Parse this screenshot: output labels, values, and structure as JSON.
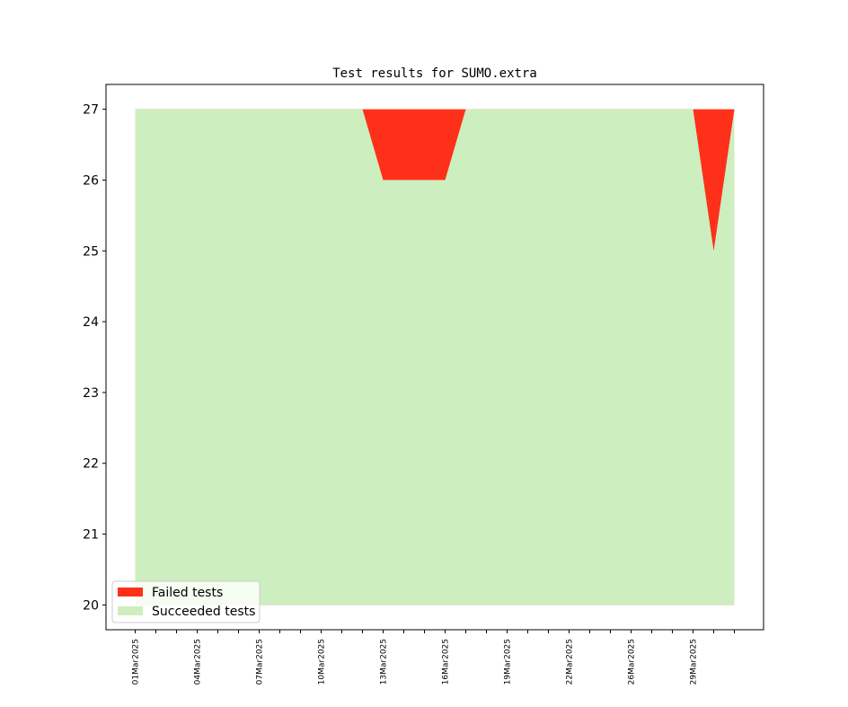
{
  "chart_data": {
    "type": "area",
    "title": "Test results for SUMO.extra",
    "xlabel": "",
    "ylabel": "",
    "ylim": [
      19.65,
      27.35
    ],
    "yticks": [
      20,
      21,
      22,
      23,
      24,
      25,
      26,
      27
    ],
    "x": [
      "01Mar2025",
      "02Mar2025",
      "03Mar2025",
      "04Mar2025",
      "05Mar2025",
      "06Mar2025",
      "07Mar2025",
      "08Mar2025",
      "09Mar2025",
      "10Mar2025",
      "11Mar2025",
      "12Mar2025",
      "13Mar2025",
      "14Mar2025",
      "15Mar2025",
      "16Mar2025",
      "17Mar2025",
      "18Mar2025",
      "19Mar2025",
      "20Mar2025",
      "21Mar2025",
      "22Mar2025",
      "23Mar2025",
      "24Mar2025",
      "26Mar2025",
      "27Mar2025",
      "28Mar2025",
      "29Mar2025",
      "30Mar2025",
      "31Mar2025"
    ],
    "xtick_labels": [
      "01Mar2025",
      "04Mar2025",
      "07Mar2025",
      "10Mar2025",
      "13Mar2025",
      "16Mar2025",
      "19Mar2025",
      "22Mar2025",
      "26Mar2025",
      "29Mar2025"
    ],
    "xtick_label_every": 3,
    "series": [
      {
        "name": "Failed tests",
        "color": "#ff3019",
        "values": [
          27,
          27,
          27,
          27,
          27,
          27,
          27,
          27,
          27,
          27,
          27,
          27,
          27,
          27,
          27,
          27,
          27,
          27,
          27,
          27,
          27,
          27,
          27,
          27,
          27,
          27,
          27,
          27,
          27,
          27
        ]
      },
      {
        "name": "Succeeded tests",
        "color": "#cdeebf",
        "values": [
          27,
          27,
          27,
          27,
          27,
          27,
          27,
          27,
          27,
          27,
          27,
          27,
          26,
          26,
          26,
          26,
          27,
          27,
          27,
          27,
          27,
          27,
          27,
          27,
          27,
          27,
          27,
          27,
          25,
          27
        ]
      }
    ],
    "baseline": 20,
    "legend_position": "lower-left",
    "grid": false
  }
}
